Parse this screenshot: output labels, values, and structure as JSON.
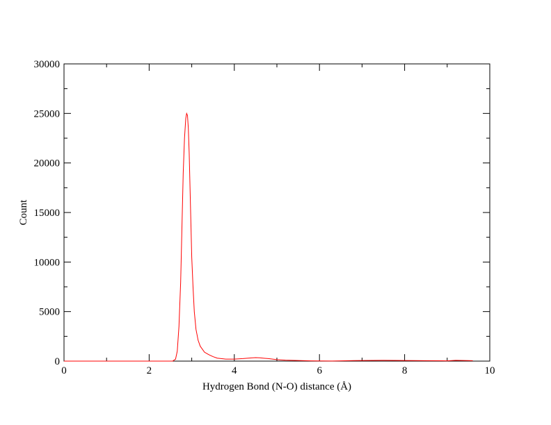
{
  "chart_data": {
    "type": "line",
    "title": "",
    "xlabel": "Hydrogen Bond (N-O) distance (Å)",
    "ylabel": "Count",
    "xlim": [
      0,
      10
    ],
    "ylim": [
      0,
      30000
    ],
    "x_ticks": [
      0,
      2,
      4,
      6,
      8,
      10
    ],
    "y_ticks": [
      0,
      5000,
      10000,
      15000,
      20000,
      25000,
      30000
    ],
    "grid": false,
    "legend": "none",
    "series": [
      {
        "color": "#ff0000",
        "x": [
          0,
          2.55,
          2.62,
          2.66,
          2.7,
          2.74,
          2.77,
          2.8,
          2.83,
          2.86,
          2.88,
          2.9,
          2.92,
          2.94,
          2.96,
          2.98,
          3.0,
          3.03,
          3.06,
          3.1,
          3.15,
          3.2,
          3.3,
          3.4,
          3.5,
          3.6,
          3.8,
          4.0,
          4.2,
          4.4,
          4.5,
          4.6,
          4.8,
          5.0,
          5.2,
          5.5,
          5.8,
          6.0,
          6.3,
          6.8,
          7.0,
          7.5,
          8.0,
          8.5,
          9.0,
          9.2,
          9.6
        ],
        "y": [
          0,
          0,
          200,
          1000,
          3500,
          8000,
          13500,
          19000,
          22500,
          24500,
          25000,
          24800,
          23500,
          21000,
          17500,
          14000,
          10500,
          7500,
          5000,
          3200,
          2100,
          1500,
          900,
          650,
          450,
          300,
          200,
          200,
          250,
          320,
          350,
          330,
          250,
          150,
          100,
          60,
          30,
          20,
          10,
          50,
          60,
          80,
          60,
          40,
          30,
          80,
          40
        ]
      }
    ]
  }
}
